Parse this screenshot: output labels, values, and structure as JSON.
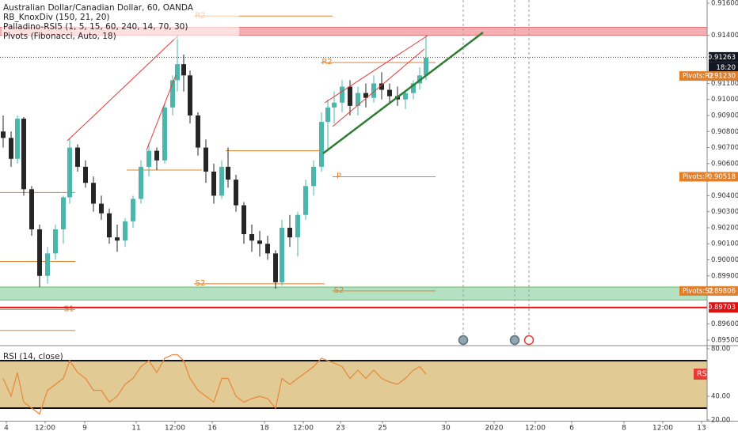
{
  "header": {
    "symbol": "Australian Dollar/Canadian Dollar, 60, OANDA",
    "indicators": [
      "RB_KnoxDiv (150, 21, 20)",
      "Palladino-RSI5 (1, 5, 15, 60, 240, 14, 70, 30)",
      "Pivots (Fibonacci, Auto, 18)"
    ]
  },
  "chart_data": [
    {
      "type": "candlestick",
      "x": [
        1,
        3.5,
        5.5,
        7.5,
        10,
        12.5,
        15,
        17.5,
        20,
        22,
        24.5,
        27,
        29.5,
        32,
        34.5,
        37,
        39.5,
        42,
        44.5,
        47,
        49.5,
        52,
        54.5,
        56,
        58,
        60,
        62.5,
        65,
        67.5,
        70,
        72,
        74.5,
        77,
        79.5,
        82,
        84.5,
        87,
        89,
        91.5,
        94,
        96.5,
        99,
        101.5,
        103.5,
        105.5,
        108,
        110.5,
        113,
        115.5,
        118,
        120.5,
        123,
        125.5,
        128,
        130.5,
        132.5,
        134.5
      ],
      "open": [
        0.908,
        0.9076,
        0.9063,
        0.9088,
        0.9044,
        0.9019,
        0.899,
        0.9004,
        0.9019,
        0.9039,
        0.907,
        0.9058,
        0.9048,
        0.9035,
        0.9029,
        0.9014,
        0.9012,
        0.9024,
        0.9038,
        0.9058,
        0.9068,
        0.9062,
        0.9095,
        0.9112,
        0.9122,
        0.9115,
        0.909,
        0.907,
        0.9055,
        0.904,
        0.9058,
        0.905,
        0.9034,
        0.9016,
        0.9012,
        0.901,
        0.9004,
        0.8986,
        0.902,
        0.9014,
        0.9028,
        0.9046,
        0.9058,
        0.9086,
        0.9095,
        0.9098,
        0.9108,
        0.9096,
        0.9104,
        0.9101,
        0.911,
        0.9106,
        0.9102,
        0.91,
        0.9104,
        0.911,
        0.9115
      ],
      "high": [
        0.909,
        0.908,
        0.909,
        0.9089,
        0.9046,
        0.9022,
        0.9008,
        0.9022,
        0.904,
        0.9076,
        0.9072,
        0.9062,
        0.9052,
        0.904,
        0.9032,
        0.9022,
        0.9026,
        0.904,
        0.9062,
        0.9073,
        0.907,
        0.9098,
        0.9115,
        0.914,
        0.9128,
        0.9118,
        0.9092,
        0.9075,
        0.906,
        0.9062,
        0.907,
        0.9053,
        0.9036,
        0.9022,
        0.9018,
        0.9015,
        0.9006,
        0.9025,
        0.9028,
        0.903,
        0.905,
        0.9062,
        0.9092,
        0.91,
        0.9105,
        0.9112,
        0.9112,
        0.9108,
        0.911,
        0.9115,
        0.9117,
        0.911,
        0.9108,
        0.9106,
        0.9112,
        0.912,
        0.914
      ],
      "low": [
        0.907,
        0.9058,
        0.906,
        0.904,
        0.9015,
        0.8983,
        0.8985,
        0.9,
        0.901,
        0.9035,
        0.9055,
        0.9045,
        0.903,
        0.9025,
        0.901,
        0.9005,
        0.9008,
        0.902,
        0.9035,
        0.9052,
        0.9056,
        0.906,
        0.909,
        0.9105,
        0.9105,
        0.9085,
        0.9065,
        0.9048,
        0.9035,
        0.9038,
        0.9045,
        0.903,
        0.901,
        0.9005,
        0.9002,
        0.9,
        0.8982,
        0.8984,
        0.9008,
        0.9002,
        0.9025,
        0.904,
        0.9055,
        0.9068,
        0.9085,
        0.9092,
        0.909,
        0.909,
        0.9095,
        0.9098,
        0.91,
        0.9098,
        0.9096,
        0.9094,
        0.91,
        0.9106,
        0.9112
      ],
      "close": [
        0.9076,
        0.9063,
        0.9088,
        0.9044,
        0.9019,
        0.899,
        0.9004,
        0.9019,
        0.9039,
        0.907,
        0.9058,
        0.9048,
        0.9035,
        0.9029,
        0.9014,
        0.9012,
        0.9024,
        0.9038,
        0.9058,
        0.9068,
        0.9062,
        0.9095,
        0.9112,
        0.9122,
        0.9115,
        0.909,
        0.907,
        0.9055,
        0.904,
        0.9058,
        0.905,
        0.9034,
        0.9016,
        0.9012,
        0.901,
        0.9004,
        0.8986,
        0.902,
        0.9014,
        0.9028,
        0.9046,
        0.9058,
        0.9086,
        0.9095,
        0.9098,
        0.9108,
        0.9096,
        0.9104,
        0.9101,
        0.911,
        0.9106,
        0.9102,
        0.91,
        0.9104,
        0.911,
        0.9115,
        0.9126
      ],
      "up_color": "#4db6ac",
      "down_color": "#262626",
      "xlim": [
        0,
        223.25
      ],
      "ylim": [
        0.89465,
        0.9162
      ],
      "yticks": [
        {
          "value": 0.916,
          "label": "0.91600"
        },
        {
          "value": 0.914,
          "label": "0.91400"
        },
        {
          "value": 0.911,
          "label": "0.91100"
        },
        {
          "value": 0.91,
          "label": "0.91000"
        },
        {
          "value": 0.909,
          "label": "0.90900"
        },
        {
          "value": 0.908,
          "label": "0.90800"
        },
        {
          "value": 0.907,
          "label": "0.90700"
        },
        {
          "value": 0.906,
          "label": "0.90600"
        },
        {
          "value": 0.904,
          "label": "0.90400"
        },
        {
          "value": 0.903,
          "label": "0.90300"
        },
        {
          "value": 0.902,
          "label": "0.90200"
        },
        {
          "value": 0.901,
          "label": "0.90100"
        },
        {
          "value": 0.9,
          "label": "0.90000"
        },
        {
          "value": 0.899,
          "label": "0.89900"
        },
        {
          "value": 0.896,
          "label": "0.89600"
        },
        {
          "value": 0.895,
          "label": "0.89500"
        }
      ],
      "last_price": {
        "value": 0.91263,
        "label": "0.91263"
      },
      "countdown": "18:20",
      "markers": {
        "names": [
          "Pivots:R2",
          "Pivots:P",
          "Pivots:S2"
        ],
        "values": [
          0.9123,
          0.90518,
          0.89806
        ],
        "value_labels": [
          "0.91230",
          "0.90518",
          "0.89806"
        ],
        "color": "#e0802c"
      },
      "alert_line": {
        "value": 0.89703,
        "label": "0.89703",
        "color": "#e01010"
      },
      "zones": [
        {
          "range": [
            0.914,
            0.9145
          ],
          "color": "#f4a0a8"
        },
        {
          "range": [
            0.8975,
            0.8983
          ],
          "color": "#a8dcb8"
        }
      ],
      "pivot_lines": [
        {
          "label": "R2",
          "value": 0.9152,
          "x": [
            61.25,
            105
          ]
        },
        {
          "label": "R2",
          "value": 0.9123,
          "x": [
            101.25,
            137.5
          ]
        },
        {
          "value": 0.9068,
          "x": [
            71.25,
            102
          ]
        },
        {
          "label": "P",
          "value": 0.90518,
          "x": [
            105,
            137.5
          ]
        },
        {
          "value": 0.9056,
          "x": [
            40,
            63.75
          ]
        },
        {
          "value": 0.9042,
          "x": [
            0,
            23.75
          ]
        },
        {
          "value": 0.8999,
          "x": [
            0,
            23.75
          ]
        },
        {
          "label": "S2",
          "value": 0.8985,
          "x": [
            61.25,
            102.5
          ]
        },
        {
          "label": "S2",
          "value": 0.89806,
          "x": [
            105,
            137.5
          ]
        },
        {
          "label": "S1",
          "value": 0.8969,
          "x": [
            0,
            23.75
          ]
        },
        {
          "value": 0.8956,
          "x": [
            0,
            23.75
          ]
        }
      ],
      "events": [
        146.25,
        162.5,
        167
      ],
      "xticks": [
        {
          "value": 2,
          "label": "4"
        },
        {
          "value": 14.25,
          "label": "12:00"
        },
        {
          "value": 26.75,
          "label": "9"
        },
        {
          "value": 43,
          "label": "11"
        },
        {
          "value": 55.25,
          "label": "12:00"
        },
        {
          "value": 67,
          "label": "16"
        },
        {
          "value": 83.5,
          "label": "18"
        },
        {
          "value": 95.75,
          "label": "12:00"
        },
        {
          "value": 107.5,
          "label": "23"
        },
        {
          "value": 120.75,
          "label": "25"
        },
        {
          "value": 140.75,
          "label": "30"
        },
        {
          "value": 156,
          "label": "2020"
        },
        {
          "value": 169,
          "label": "12:00"
        },
        {
          "value": 180.5,
          "label": "6"
        },
        {
          "value": 197,
          "label": "8"
        },
        {
          "value": 209.25,
          "label": "12:00"
        },
        {
          "value": 221.5,
          "label": "13"
        }
      ]
    },
    {
      "type": "line",
      "title": "RSI (14, close)",
      "series": [
        {
          "name": "RSI",
          "color": "#e8873a",
          "values": [
            55,
            40,
            60,
            35,
            30,
            25,
            45,
            50,
            55,
            70,
            60,
            55,
            45,
            45,
            35,
            40,
            50,
            55,
            65,
            70,
            60,
            72,
            75,
            75,
            70,
            55,
            45,
            40,
            35,
            55,
            55,
            40,
            35,
            38,
            40,
            38,
            30,
            55,
            50,
            55,
            60,
            65,
            72,
            70,
            68,
            65,
            55,
            62,
            55,
            62,
            55,
            52,
            50,
            55,
            62,
            65,
            58.62
          ]
        }
      ],
      "ylim": [
        19,
        83
      ],
      "yticks": [
        {
          "value": 80,
          "label": "80.00"
        },
        {
          "value": 40,
          "label": "40.00"
        },
        {
          "value": 20,
          "label": "20.00"
        }
      ],
      "band": [
        30,
        70
      ],
      "band_color": "#dfc48a"
    }
  ]
}
